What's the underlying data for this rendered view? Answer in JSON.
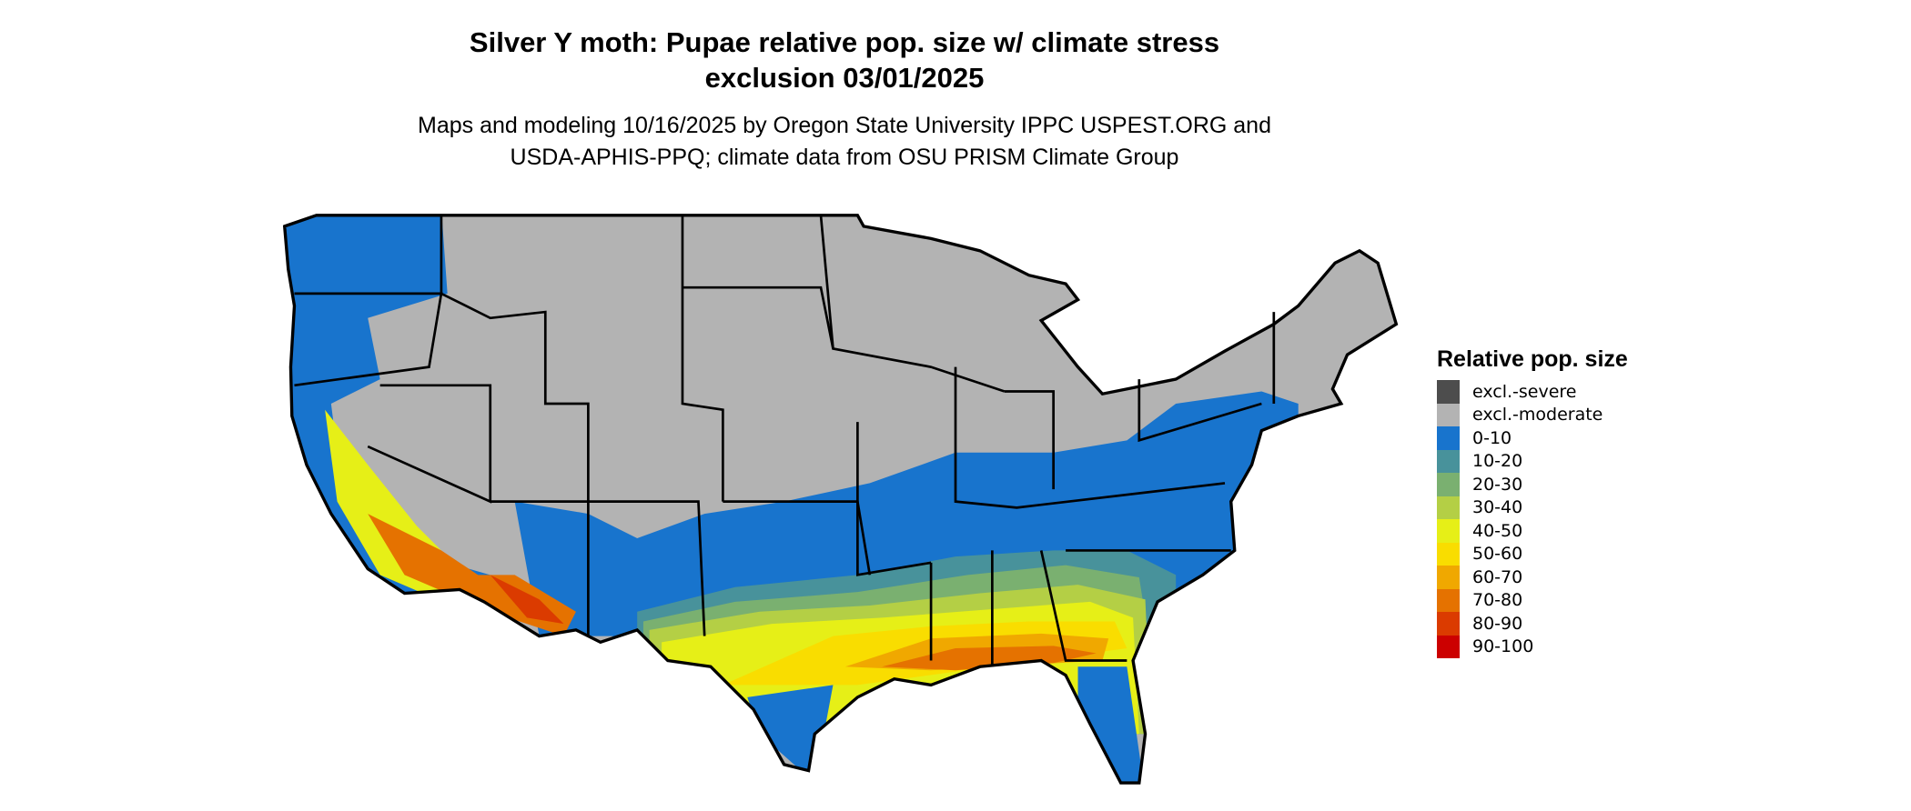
{
  "title_line1": "Silver Y moth: Pupae relative pop. size w/ climate stress",
  "title_line2": "exclusion 03/01/2025",
  "subtitle_line1": "Maps and modeling 10/16/2025 by Oregon State University IPPC USPEST.ORG and",
  "subtitle_line2": "USDA-APHIS-PPQ; climate data from OSU PRISM Climate Group",
  "region": "Contiguous United States",
  "legend": {
    "title": "Relative pop. size",
    "items": [
      {
        "label": "excl.-severe",
        "color": "#4d4d4d"
      },
      {
        "label": "excl.-moderate",
        "color": "#b3b3b3"
      },
      {
        "label": "0-10",
        "color": "#1874cd"
      },
      {
        "label": "10-20",
        "color": "#48929b"
      },
      {
        "label": "20-30",
        "color": "#7ab070"
      },
      {
        "label": "30-40",
        "color": "#b4cf45"
      },
      {
        "label": "40-50",
        "color": "#e6ef17"
      },
      {
        "label": "50-60",
        "color": "#f9dd00"
      },
      {
        "label": "60-70",
        "color": "#f0a800"
      },
      {
        "label": "70-80",
        "color": "#e57200"
      },
      {
        "label": "80-90",
        "color": "#db3b00"
      },
      {
        "label": "90-100",
        "color": "#cc0000"
      }
    ]
  }
}
